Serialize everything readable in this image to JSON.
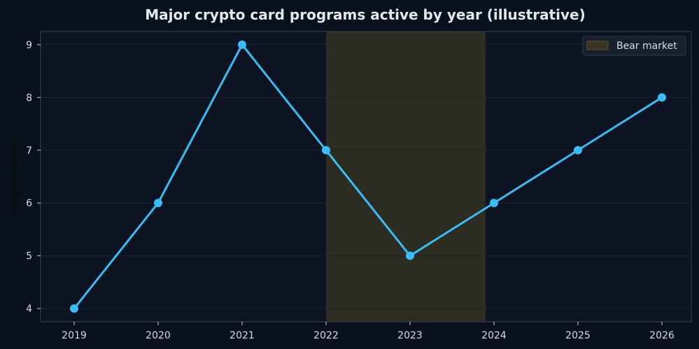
{
  "chart_data": {
    "type": "line",
    "title": "Major crypto card programs active by year (illustrative)",
    "xlabel": "",
    "ylabel": "Program count",
    "x": [
      2019,
      2020,
      2021,
      2022,
      2023,
      2024,
      2025,
      2026
    ],
    "series": [
      {
        "values": [
          4,
          6,
          9,
          7,
          5,
          6,
          7,
          8
        ],
        "color": "#38bdf8"
      }
    ],
    "xlim": [
      2018.6,
      2026.35
    ],
    "ylim": [
      3.75,
      9.25
    ],
    "xticks": [
      2019,
      2020,
      2021,
      2022,
      2023,
      2024,
      2025,
      2026
    ],
    "yticks": [
      4,
      5,
      6,
      7,
      8,
      9
    ],
    "grid": true,
    "shaded_regions": [
      {
        "label": "Bear market",
        "x_start": 2022,
        "x_end": 2023.9,
        "color": "#3a3422"
      }
    ],
    "legend": {
      "position": "top-right",
      "entries": [
        "Bear market"
      ]
    },
    "colors": {
      "background": "#0b111c",
      "plot_background": "#0b1420",
      "grid": "#1a2535",
      "axis": "#3a4556",
      "line": "#38bdf8"
    }
  }
}
